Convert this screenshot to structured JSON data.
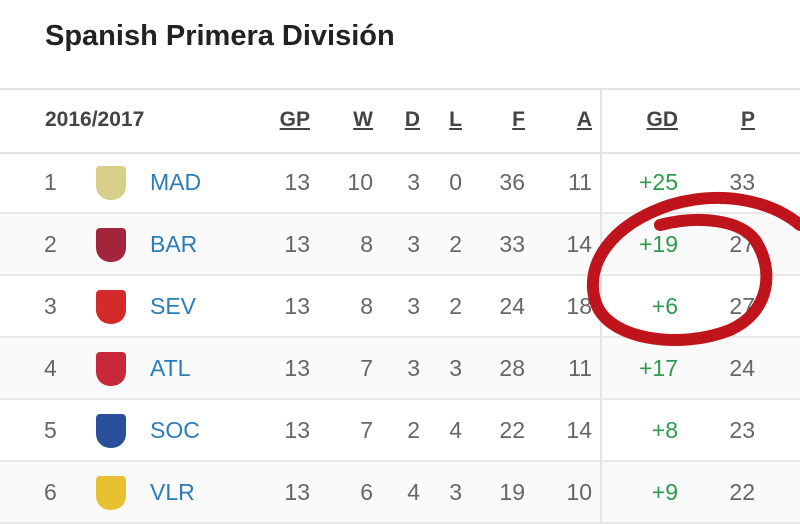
{
  "title": "Spanish Primera División",
  "season": "2016/2017",
  "columns": [
    "GP",
    "W",
    "D",
    "L",
    "F",
    "A",
    "GD",
    "P"
  ],
  "rows": [
    {
      "rank": "1",
      "team": "MAD",
      "gp": "13",
      "w": "10",
      "d": "3",
      "l": "0",
      "f": "36",
      "a": "11",
      "gd": "+25",
      "p": "33",
      "crest": "#d8cf8a"
    },
    {
      "rank": "2",
      "team": "BAR",
      "gp": "13",
      "w": "8",
      "d": "3",
      "l": "2",
      "f": "33",
      "a": "14",
      "gd": "+19",
      "p": "27",
      "crest": "#a3243b"
    },
    {
      "rank": "3",
      "team": "SEV",
      "gp": "13",
      "w": "8",
      "d": "3",
      "l": "2",
      "f": "24",
      "a": "18",
      "gd": "+6",
      "p": "27",
      "crest": "#d42a2a"
    },
    {
      "rank": "4",
      "team": "ATL",
      "gp": "13",
      "w": "7",
      "d": "3",
      "l": "3",
      "f": "28",
      "a": "11",
      "gd": "+17",
      "p": "24",
      "crest": "#c8283a"
    },
    {
      "rank": "5",
      "team": "SOC",
      "gp": "13",
      "w": "7",
      "d": "2",
      "l": "4",
      "f": "22",
      "a": "14",
      "gd": "+8",
      "p": "23",
      "crest": "#2a4f9a"
    },
    {
      "rank": "6",
      "team": "VLR",
      "gp": "13",
      "w": "6",
      "d": "4",
      "l": "3",
      "f": "19",
      "a": "10",
      "gd": "+9",
      "p": "22",
      "crest": "#e8c030"
    }
  ],
  "annotation_color": "#c0141c"
}
